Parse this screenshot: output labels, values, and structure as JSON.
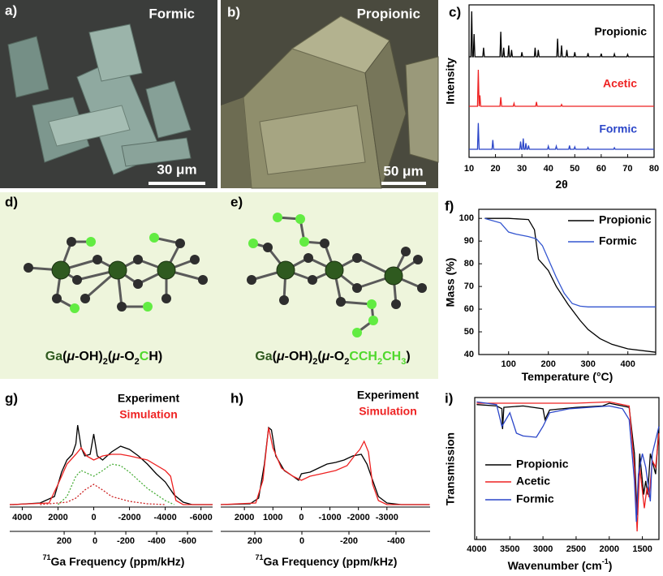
{
  "panels": [
    {
      "label": "a)",
      "title": "Formic",
      "scale_bar": "30 μm"
    },
    {
      "label": "b)",
      "title": "Propionic",
      "scale_bar": "50 μm"
    },
    {
      "label": "d)",
      "formula": [
        "Ga",
        "(",
        "μ",
        "-OH)",
        "2",
        "(",
        "μ",
        "-O",
        "2",
        "C",
        "H)"
      ]
    },
    {
      "label": "e)",
      "formula": [
        "Ga",
        "(",
        "μ",
        "-OH)",
        "2",
        "(",
        "μ",
        "-O",
        "2",
        "CCH",
        "2",
        "CH",
        "3",
        ")"
      ]
    }
  ],
  "chart_data": [
    {
      "type": "line",
      "label": "c)",
      "xlabel": "2θ",
      "ylabel": "Intensity",
      "xlim": [
        10,
        80
      ],
      "xticks": [
        10,
        20,
        30,
        40,
        50,
        60,
        70,
        80
      ],
      "series": [
        {
          "name": "Propionic",
          "color": "#000000",
          "x": [
            10,
            10.7,
            11,
            11.3,
            11.6,
            11.9,
            12.2,
            15.2,
            15.5,
            15.8,
            21.7,
            22,
            22.3,
            22.8,
            23.1,
            23.4,
            24.7,
            25,
            25.3,
            25.8,
            26.1,
            26.4,
            29.7,
            30,
            30.3,
            34.7,
            35,
            35.3,
            35.9,
            36.2,
            36.5,
            43.2,
            43.5,
            43.8,
            44.7,
            45,
            45.3,
            46.7,
            47,
            47.3,
            49.7,
            50,
            50.3,
            54.7,
            55,
            55.3,
            59.7,
            60,
            60.3,
            64.7,
            65,
            65.3,
            69.7,
            70,
            70.3,
            80
          ],
          "values": [
            0,
            0,
            1,
            0,
            0,
            0.5,
            0,
            0,
            0.2,
            0,
            0,
            0.55,
            0,
            0,
            0.2,
            0,
            0,
            0.25,
            0,
            0,
            0.15,
            0,
            0,
            0.1,
            0,
            0,
            0.2,
            0,
            0,
            0.15,
            0,
            0,
            0.4,
            0,
            0,
            0.25,
            0,
            0,
            0.15,
            0,
            0,
            0.1,
            0,
            0,
            0.08,
            0,
            0,
            0.07,
            0,
            0,
            0.06,
            0,
            0,
            0.05,
            0,
            0
          ]
        },
        {
          "name": "Acetic",
          "color": "#ee2222",
          "x": [
            10,
            13.2,
            13.5,
            13.8,
            14.1,
            14.4,
            21.7,
            22,
            22.3,
            26.7,
            27,
            27.3,
            35.2,
            35.5,
            35.8,
            44.7,
            45,
            45.3,
            80
          ],
          "values": [
            0,
            0,
            1,
            0,
            0.3,
            0,
            0,
            0.25,
            0,
            0,
            0.08,
            0,
            0,
            0.12,
            0,
            0,
            0.05,
            0,
            0
          ]
        },
        {
          "name": "Formic",
          "color": "#2a45c8",
          "x": [
            10,
            13.2,
            13.5,
            13.8,
            18.7,
            19,
            19.3,
            29.2,
            29.5,
            29.8,
            30.2,
            30.5,
            30.8,
            31.2,
            31.5,
            31.8,
            32.2,
            32.5,
            32.8,
            39.7,
            40,
            40.3,
            42.7,
            43,
            43.3,
            47.7,
            48,
            48.3,
            49.7,
            50,
            50.3,
            54.7,
            55,
            55.3,
            64.7,
            65,
            65.3,
            80
          ],
          "values": [
            0,
            0,
            0.85,
            0,
            0,
            0.3,
            0,
            0,
            0.25,
            0,
            0,
            0.35,
            0,
            0,
            0.2,
            0,
            0,
            0.12,
            0,
            0,
            0.1,
            0,
            0,
            0.1,
            0,
            0,
            0.12,
            0,
            0,
            0.08,
            0,
            0,
            0.06,
            0,
            0,
            0.05,
            0,
            0
          ]
        }
      ]
    },
    {
      "type": "line",
      "label": "f)",
      "xlabel": "Temperature (°C)",
      "ylabel": "Mass (%)",
      "xlim": [
        25,
        470
      ],
      "xticks": [
        100,
        200,
        300,
        400
      ],
      "ylim": [
        40,
        104
      ],
      "yticks": [
        40,
        50,
        60,
        70,
        80,
        90,
        100
      ],
      "series": [
        {
          "name": "Propionic",
          "color": "#000000",
          "x": [
            40,
            100,
            150,
            165,
            175,
            185,
            200,
            220,
            250,
            280,
            300,
            330,
            360,
            400,
            470
          ],
          "values": [
            100,
            100,
            99.5,
            95,
            82,
            80,
            77,
            70,
            62,
            55,
            51,
            47,
            44.5,
            42.5,
            41
          ]
        },
        {
          "name": "Formic",
          "color": "#3456d0",
          "x": [
            40,
            80,
            100,
            120,
            150,
            170,
            185,
            200,
            220,
            240,
            260,
            280,
            300,
            350,
            470
          ],
          "values": [
            100,
            98,
            94,
            93,
            92,
            91,
            88,
            82,
            74,
            67,
            62.5,
            61.3,
            61,
            61,
            61
          ]
        }
      ]
    },
    {
      "type": "line",
      "label": "g)",
      "xlabel_sup": "71",
      "xlabel": "Ga Frequency (ppm/kHz)",
      "xlim": [
        4700,
        -6650
      ],
      "xticks": [
        4000,
        2000,
        0,
        -2000,
        -4000,
        -6000
      ],
      "x2lim": [
        553,
        -763
      ],
      "x2ticks": [
        200,
        0,
        -200,
        -400,
        -600
      ],
      "series": [
        {
          "name": "Experiment",
          "color": "#000000",
          "x": [
            4700,
            4500,
            3000,
            2200,
            1800,
            1500,
            1200,
            1000,
            900,
            700,
            500,
            200,
            0,
            -200,
            -500,
            -1000,
            -1500,
            -2000,
            -2500,
            -3000,
            -3500,
            -4000,
            -4500,
            -5000,
            -5500,
            -6650
          ],
          "values": [
            0,
            0,
            0.02,
            0.1,
            0.4,
            0.55,
            0.62,
            0.75,
            0.98,
            0.7,
            0.6,
            0.62,
            0.87,
            0.6,
            0.55,
            0.65,
            0.72,
            0.68,
            0.6,
            0.5,
            0.38,
            0.28,
            0.12,
            0.03,
            0,
            0
          ]
        },
        {
          "name": "Simulation",
          "color": "#ee2222",
          "x": [
            4700,
            2500,
            2000,
            1500,
            1000,
            700,
            400,
            0,
            -500,
            -1000,
            -1500,
            -2000,
            -3000,
            -4000,
            -4300,
            -4600,
            -5000,
            -6650
          ],
          "values": [
            0,
            0.02,
            0.25,
            0.5,
            0.62,
            0.7,
            0.6,
            0.55,
            0.6,
            0.62,
            0.62,
            0.6,
            0.55,
            0.42,
            0.35,
            0.05,
            0,
            0
          ]
        },
        {
          "color": "#4caf3c",
          "style": "dotted",
          "x": [
            2000,
            1500,
            1000,
            700,
            300,
            0,
            -500,
            -1000,
            -1500,
            -2000,
            -3000,
            -4000,
            -4500
          ],
          "values": [
            0,
            0.1,
            0.35,
            0.42,
            0.38,
            0.35,
            0.42,
            0.5,
            0.48,
            0.4,
            0.2,
            0.05,
            0
          ]
        },
        {
          "color": "#cc2222",
          "style": "dotted",
          "x": [
            3000,
            1500,
            1000,
            500,
            0,
            -500,
            -1000,
            -2000,
            -3000,
            -4000
          ],
          "values": [
            0,
            0.03,
            0.08,
            0.18,
            0.25,
            0.18,
            0.1,
            0.04,
            0.01,
            0
          ]
        }
      ]
    },
    {
      "type": "line",
      "label": "h)",
      "xlabel_sup": "71",
      "xlabel": "Ga Frequency (ppm/kHz)",
      "xlim": [
        2830,
        -4514
      ],
      "xticks": [
        2000,
        1000,
        0,
        -1000,
        -2000,
        -3000
      ],
      "x2lim": [
        345,
        -545
      ],
      "x2ticks": [
        200,
        0,
        -200,
        -400
      ],
      "series": [
        {
          "name": "Experiment",
          "color": "#000000",
          "x": [
            2830,
            1800,
            1500,
            1300,
            1150,
            1050,
            900,
            600,
            300,
            100,
            0,
            -300,
            -600,
            -900,
            -1200,
            -1500,
            -1800,
            -2100,
            -2300,
            -2500,
            -2700,
            -3000,
            -3500,
            -4500
          ],
          "values": [
            0,
            0.01,
            0.08,
            0.5,
            0.95,
            0.92,
            0.6,
            0.42,
            0.35,
            0.3,
            0.38,
            0.4,
            0.45,
            0.5,
            0.52,
            0.55,
            0.6,
            0.62,
            0.5,
            0.3,
            0.1,
            0.02,
            0,
            0
          ]
        },
        {
          "name": "Simulation",
          "color": "#ee2222",
          "x": [
            2830,
            1600,
            1350,
            1150,
            1000,
            700,
            300,
            0,
            -300,
            -700,
            -1200,
            -1600,
            -1900,
            -2050,
            -2200,
            -2350,
            -2500,
            -2700,
            -3000,
            -4500
          ],
          "values": [
            0,
            0.02,
            0.3,
            0.95,
            0.7,
            0.45,
            0.35,
            0.3,
            0.35,
            0.38,
            0.42,
            0.48,
            0.62,
            0.68,
            0.78,
            0.65,
            0.25,
            0.05,
            0,
            0
          ]
        }
      ]
    },
    {
      "type": "line",
      "label": "i)",
      "xlabel": "Wavenumber (cm",
      "xlabel_sup": "-1",
      "xlabel_end": ")",
      "ylabel": "Transmission",
      "xlim": [
        4030,
        1250
      ],
      "xticks": [
        4000,
        3500,
        3000,
        2500,
        2000,
        1500
      ],
      "series": [
        {
          "name": "Propionic",
          "color": "#000000",
          "x": [
            4000,
            3700,
            3620,
            3610,
            3590,
            3300,
            3000,
            2970,
            2940,
            2900,
            2500,
            2100,
            2000,
            1800,
            1700,
            1620,
            1580,
            1540,
            1480,
            1450,
            1420,
            1380,
            1300,
            1250
          ],
          "values": [
            0.96,
            0.95,
            0.93,
            0.78,
            0.94,
            0.95,
            0.93,
            0.85,
            0.88,
            0.92,
            0.94,
            0.95,
            0.97,
            0.95,
            0.94,
            0.6,
            0.15,
            0.6,
            0.3,
            0.4,
            0.3,
            0.6,
            0.45,
            0.8
          ]
        },
        {
          "name": "Acetic",
          "color": "#ee2222",
          "x": [
            4000,
            3000,
            2500,
            2000,
            1700,
            1620,
            1580,
            1540,
            1470,
            1430,
            1400,
            1350,
            1300,
            1250
          ],
          "values": [
            0.97,
            0.97,
            0.97,
            0.98,
            0.95,
            0.5,
            0.03,
            0.5,
            0.2,
            0.35,
            0.28,
            0.55,
            0.5,
            0.75
          ]
        },
        {
          "name": "Formic",
          "color": "#2a45c8",
          "x": [
            4000,
            3700,
            3620,
            3500,
            3400,
            3300,
            3100,
            3000,
            2900,
            2600,
            2300,
            2000,
            1800,
            1700,
            1620,
            1590,
            1560,
            1500,
            1450,
            1380,
            1350,
            1300,
            1250
          ],
          "values": [
            0.98,
            0.96,
            0.8,
            0.9,
            0.75,
            0.73,
            0.72,
            0.8,
            0.9,
            0.93,
            0.94,
            0.95,
            0.93,
            0.85,
            0.4,
            0.1,
            0.45,
            0.6,
            0.5,
            0.25,
            0.6,
            0.7,
            0.8
          ]
        }
      ]
    }
  ]
}
